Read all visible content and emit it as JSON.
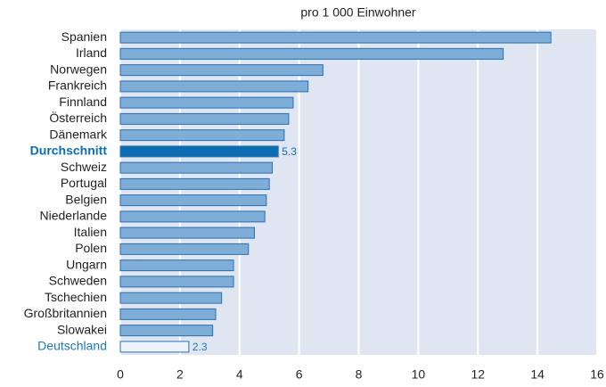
{
  "chart_data": {
    "type": "hbar",
    "title": "pro 1 000 Einwohner",
    "categories": [
      "Spanien",
      "Irland",
      "Norwegen",
      "Frankreich",
      "Finnland",
      "Österreich",
      "Dänemark",
      "Durchschnitt",
      "Schweiz",
      "Portugal",
      "Belgien",
      "Niederlande",
      "Italien",
      "Polen",
      "Ungarn",
      "Schweden",
      "Tschechien",
      "Großbritannien",
      "Slowakei",
      "Deutschland"
    ],
    "values": [
      14.45,
      12.85,
      6.8,
      6.3,
      5.8,
      5.65,
      5.5,
      5.3,
      5.1,
      5.0,
      4.9,
      4.85,
      4.5,
      4.3,
      3.8,
      3.8,
      3.4,
      3.2,
      3.1,
      2.3
    ],
    "value_labels": [
      null,
      null,
      null,
      null,
      null,
      null,
      null,
      "5.3",
      null,
      null,
      null,
      null,
      null,
      null,
      null,
      null,
      null,
      null,
      null,
      "2.3"
    ],
    "bar_colors": [
      "#7eaed8",
      "#7eaed8",
      "#7eaed8",
      "#7eaed8",
      "#7eaed8",
      "#7eaed8",
      "#7eaed8",
      "#0b6db3",
      "#7eaed8",
      "#7eaed8",
      "#7eaed8",
      "#7eaed8",
      "#7eaed8",
      "#7eaed8",
      "#7eaed8",
      "#7eaed8",
      "#7eaed8",
      "#7eaed8",
      "#7eaed8",
      "#eef3fa"
    ],
    "label_colors": [
      "#222",
      "#222",
      "#222",
      "#222",
      "#222",
      "#222",
      "#222",
      "#0b6db3",
      "#222",
      "#222",
      "#222",
      "#222",
      "#222",
      "#222",
      "#222",
      "#222",
      "#222",
      "#222",
      "#222",
      "#1a7ab8"
    ],
    "xlim": [
      0,
      16
    ],
    "xticks": [
      0,
      2,
      4,
      6,
      8,
      10,
      12,
      14,
      16
    ],
    "grid": true
  }
}
